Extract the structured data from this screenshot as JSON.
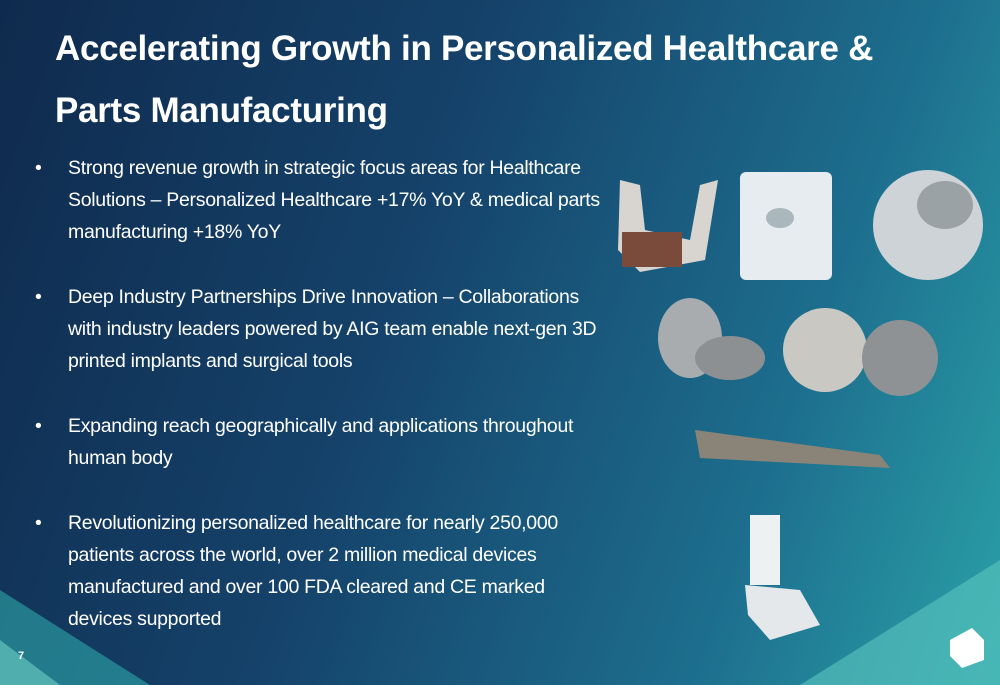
{
  "slide": {
    "title": "Accelerating Growth in Personalized Healthcare & Parts Manufacturing",
    "bullets": [
      "Strong revenue growth in strategic focus areas for Healthcare Solutions – Personalized Healthcare +17% YoY & medical parts manufacturing +18% YoY",
      "Deep Industry Partnerships Drive Innovation – Collaborations with industry leaders powered by AIG team enable next-gen 3D printed implants and surgical tools",
      "Expanding reach geographically and applications throughout human body",
      "Revolutionizing personalized healthcare for nearly 250,000 patients across the world, over 2 million medical devices manufactured and over 100 FDA cleared and CE marked devices supported"
    ],
    "page_number": "7"
  }
}
